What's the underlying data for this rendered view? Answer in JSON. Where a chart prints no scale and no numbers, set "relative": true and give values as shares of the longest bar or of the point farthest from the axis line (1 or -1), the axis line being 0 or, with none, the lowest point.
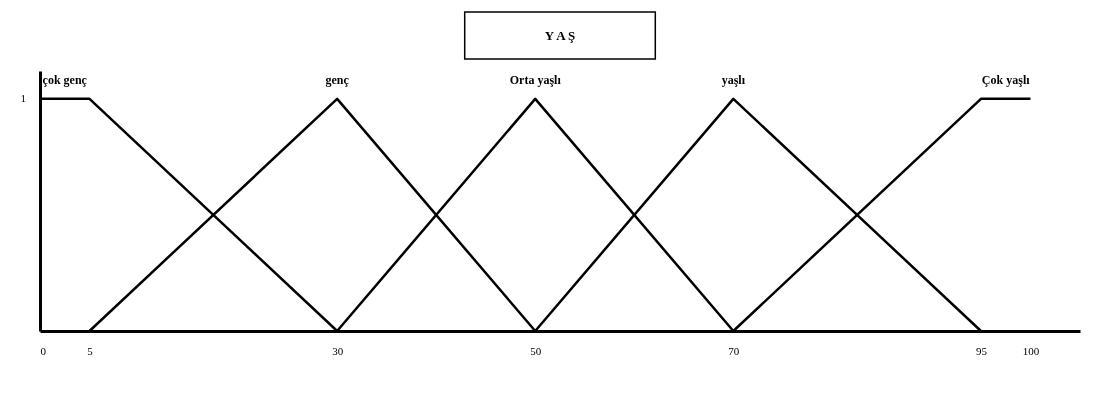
{
  "chart_data": {
    "type": "line",
    "title": "Y A Ş",
    "relative": true,
    "xlim": [
      0,
      105
    ],
    "xticks": [
      0,
      5,
      30,
      50,
      70,
      95,
      100
    ],
    "grid": false,
    "legend": false,
    "marker": "none",
    "line_style": "solid",
    "annotations": [
      "1"
    ],
    "series": [
      {
        "name": "çok genç",
        "color": "#000000",
        "x": [
          0,
          5,
          30
        ],
        "values": [
          1,
          1,
          0
        ]
      },
      {
        "name": "genç",
        "color": "#000000",
        "x": [
          5,
          30,
          50
        ],
        "values": [
          0,
          1,
          0
        ]
      },
      {
        "name": "Orta yaşlı",
        "color": "#000000",
        "x": [
          30,
          50,
          70
        ],
        "values": [
          0,
          1,
          0
        ]
      },
      {
        "name": "yaşlı",
        "color": "#000000",
        "x": [
          50,
          70,
          95
        ],
        "values": [
          0,
          1,
          0
        ]
      },
      {
        "name": "Çok yaşlı",
        "color": "#000000",
        "x": [
          70,
          95,
          100
        ],
        "values": [
          0,
          1,
          1
        ]
      }
    ]
  }
}
